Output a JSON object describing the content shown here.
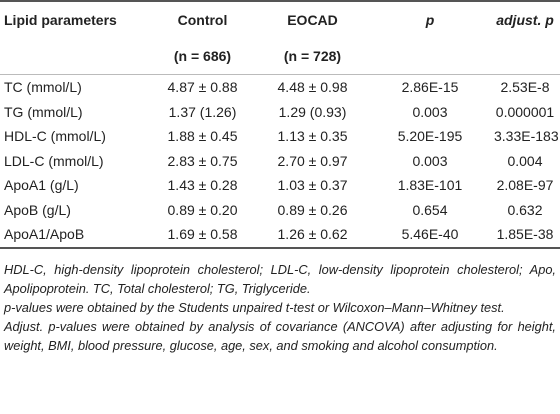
{
  "table": {
    "header": [
      "Lipid parameters",
      "Control",
      "EOCAD",
      "p",
      "adjust. p"
    ],
    "subheader": [
      "",
      "(n = 686)",
      "(n = 728)",
      "",
      ""
    ],
    "rows": [
      [
        "TC (mmol/L)",
        "4.87 ± 0.88",
        "4.48 ± 0.98",
        "2.86E-15",
        "2.53E-8"
      ],
      [
        "TG (mmol/L)",
        "1.37 (1.26)",
        "1.29 (0.93)",
        "0.003",
        "0.000001"
      ],
      [
        "HDL-C (mmol/L)",
        "1.88 ± 0.45",
        "1.13 ± 0.35",
        "5.20E-195",
        "3.33E-183"
      ],
      [
        "LDL-C (mmol/L)",
        "2.83 ± 0.75",
        "2.70 ± 0.97",
        "0.003",
        "0.004"
      ],
      [
        "ApoA1 (g/L)",
        "1.43 ± 0.28",
        "1.03 ± 0.37",
        "1.83E-101",
        "2.08E-97"
      ],
      [
        "ApoB (g/L)",
        "0.89 ± 0.20",
        "0.89 ± 0.26",
        "0.654",
        "0.632"
      ],
      [
        "ApoA1/ApoB",
        "1.69 ± 0.58",
        "1.26 ± 0.62",
        "5.46E-40",
        "1.85E-38"
      ]
    ]
  },
  "footnotes": [
    "HDL-C, high-density lipoprotein cholesterol; LDL-C, low-density lipoprotein cholesterol; Apo, Apolipoprotein. TC, Total cholesterol; TG, Triglyceride.",
    "p-values were obtained by the Students unpaired t-test or Wilcoxon–Mann–Whitney test.",
    "Adjust. p-values were obtained by analysis of covariance (ANCOVA) after adjusting for height, weight, BMI, blood pressure, glucose, age, sex, and smoking and alcohol consumption."
  ]
}
